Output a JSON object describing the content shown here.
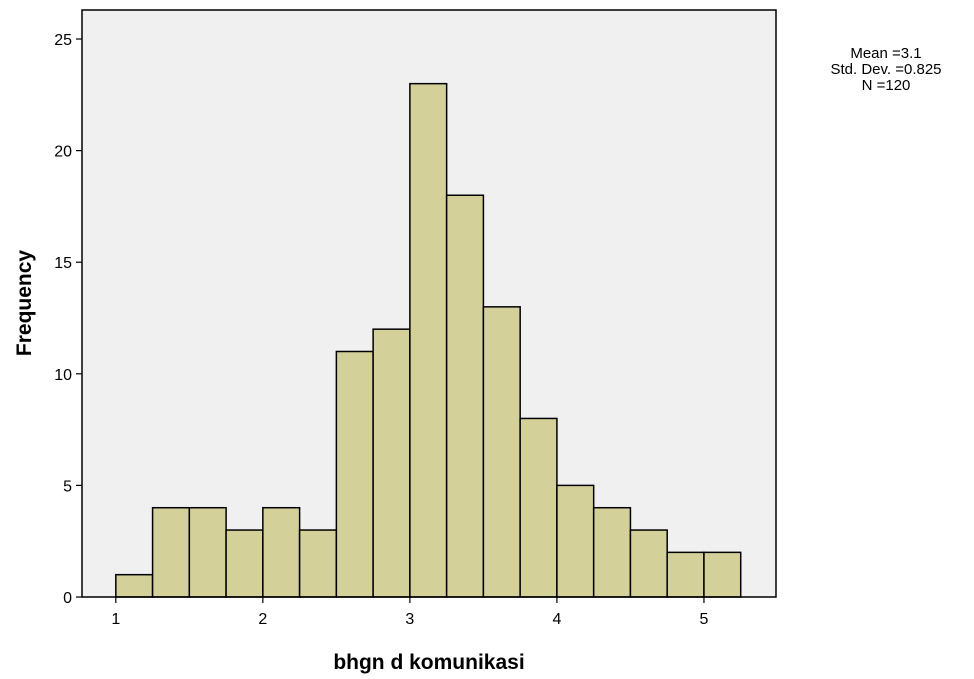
{
  "chart_data": {
    "type": "bar",
    "xlabel": "bhgn d komunikasi",
    "ylabel": "Frequency",
    "bin_width": 0.25,
    "bins": [
      {
        "start": 1.0,
        "end": 1.25,
        "count": 1
      },
      {
        "start": 1.25,
        "end": 1.5,
        "count": 4
      },
      {
        "start": 1.5,
        "end": 1.75,
        "count": 4
      },
      {
        "start": 1.75,
        "end": 2.0,
        "count": 3
      },
      {
        "start": 2.0,
        "end": 2.25,
        "count": 4
      },
      {
        "start": 2.25,
        "end": 2.5,
        "count": 3
      },
      {
        "start": 2.5,
        "end": 2.75,
        "count": 11
      },
      {
        "start": 2.75,
        "end": 3.0,
        "count": 12
      },
      {
        "start": 3.0,
        "end": 3.25,
        "count": 23
      },
      {
        "start": 3.25,
        "end": 3.5,
        "count": 18
      },
      {
        "start": 3.5,
        "end": 3.75,
        "count": 13
      },
      {
        "start": 3.75,
        "end": 4.0,
        "count": 8
      },
      {
        "start": 4.0,
        "end": 4.25,
        "count": 5
      },
      {
        "start": 4.25,
        "end": 4.5,
        "count": 4
      },
      {
        "start": 4.5,
        "end": 4.75,
        "count": 3
      },
      {
        "start": 4.75,
        "end": 5.0,
        "count": 2
      },
      {
        "start": 5.0,
        "end": 5.25,
        "count": 2
      }
    ],
    "xticks": [
      1,
      2,
      3,
      4,
      5
    ],
    "yticks": [
      0,
      5,
      10,
      15,
      20,
      25
    ],
    "xlim": [
      0.77,
      5.49
    ],
    "ylim": [
      0,
      26.3
    ],
    "grid": false,
    "colors": {
      "bar_fill": "#d4d09a",
      "bar_stroke": "#000000",
      "plot_background": "#f0f0f0"
    }
  },
  "stats": {
    "mean": "Mean =3.1",
    "std_dev": "Std. Dev. =0.825",
    "n": "N =120"
  }
}
